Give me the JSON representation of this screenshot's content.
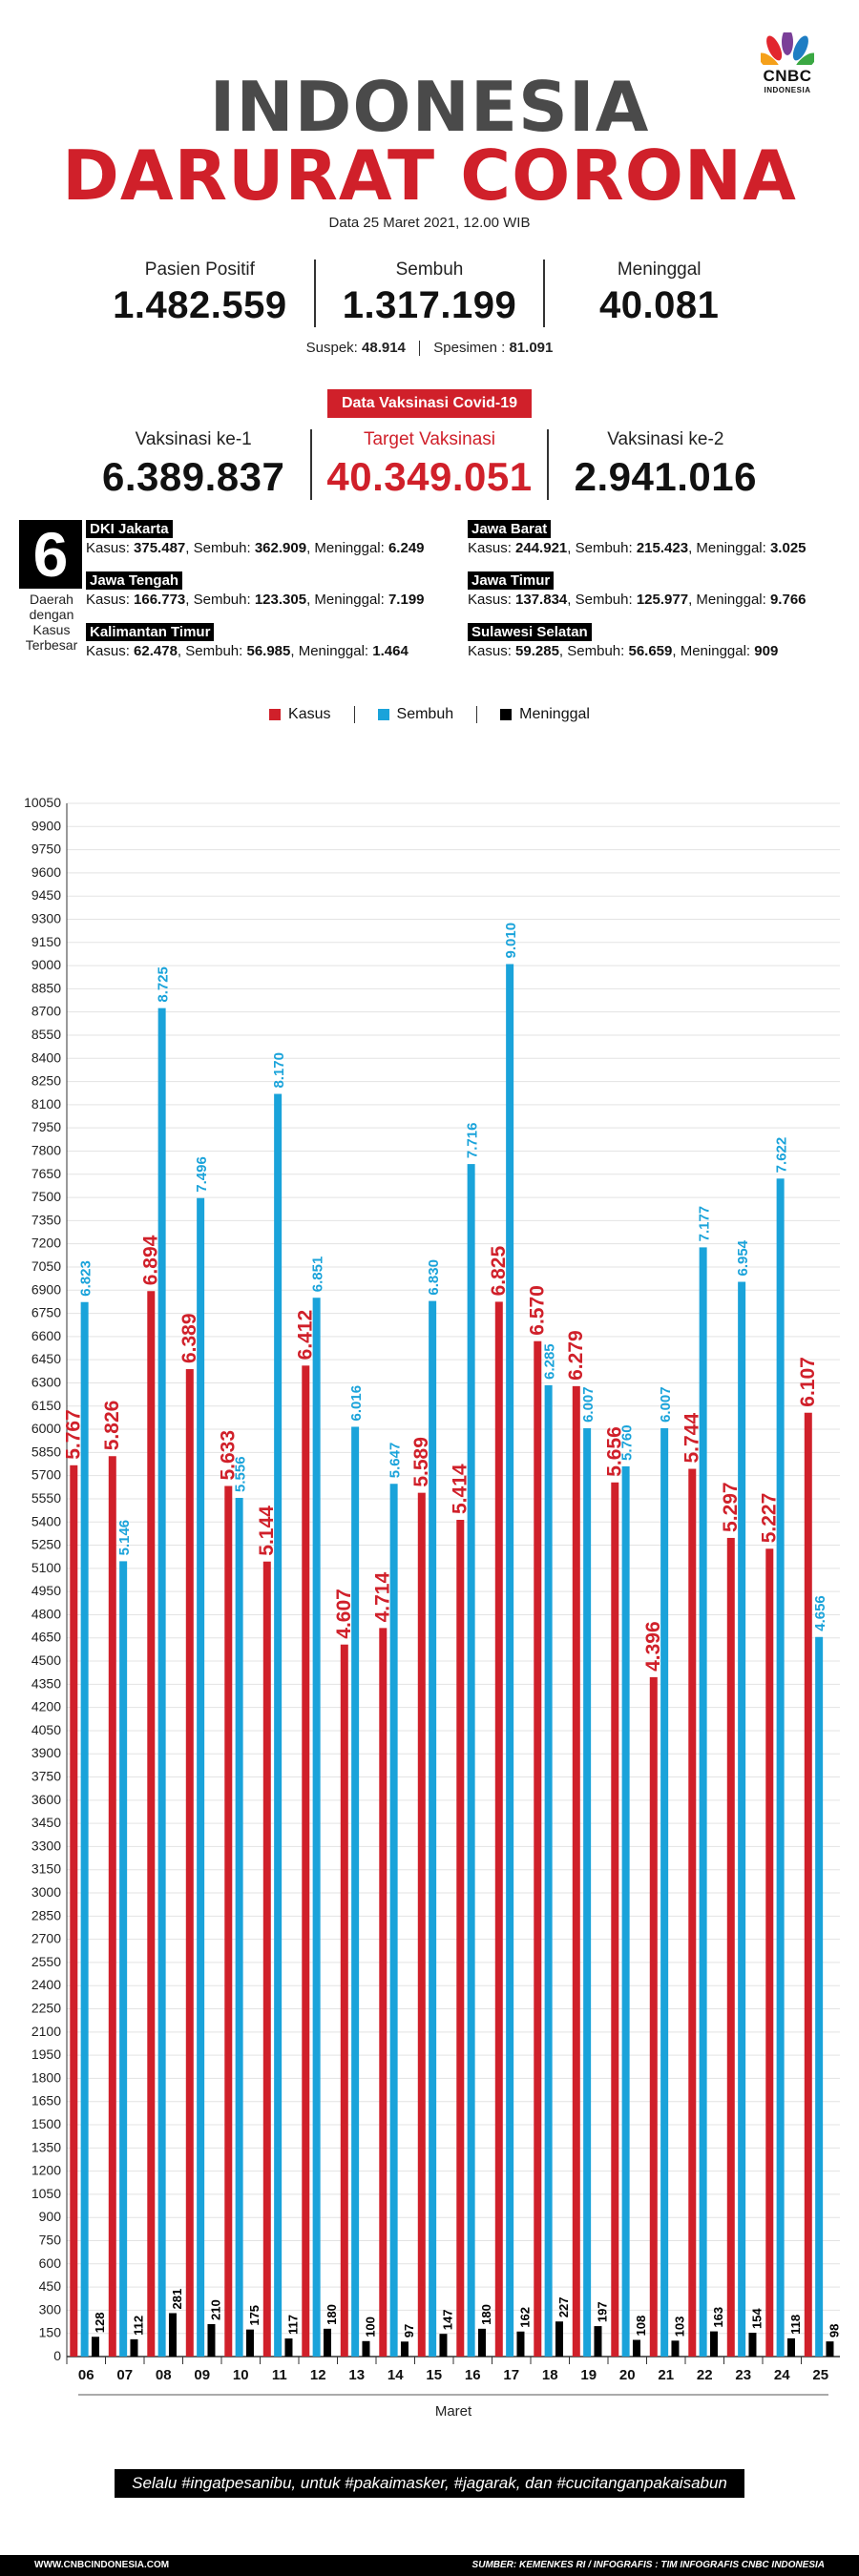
{
  "logo": {
    "line1": "CNBC",
    "line2": "INDONESIA"
  },
  "title_line1": "INDONESIA",
  "title_line2": "DARURAT CORONA",
  "date": "Data 25 Maret 2021, 12.00 WIB",
  "stats": [
    {
      "label": "Pasien Positif",
      "value": "1.482.559"
    },
    {
      "label": "Sembuh",
      "value": "1.317.199"
    },
    {
      "label": "Meninggal",
      "value": "40.081"
    }
  ],
  "suspek": {
    "label": "Suspek:",
    "value": "48.914"
  },
  "spesimen": {
    "label": "Spesimen :",
    "value": "81.091"
  },
  "vaccine": {
    "badge": "Data Vaksinasi Covid-19",
    "items": [
      {
        "label": "Vaksinasi ke-1",
        "value": "6.389.837"
      },
      {
        "label": "Target Vaksinasi",
        "value": "40.349.051"
      },
      {
        "label": "Vaksinasi ke-2",
        "value": "2.941.016"
      }
    ]
  },
  "regions": {
    "big_number": "6",
    "caption": "Daerah dengan Kasus Terbesar",
    "items": [
      {
        "name": "DKI Jakarta",
        "kasus_label": "Kasus:",
        "kasus": "375.487",
        "sembuh_label": "Sembuh:",
        "sembuh": "362.909",
        "meninggal_label": "Meninggal:",
        "meninggal": "6.249"
      },
      {
        "name": "Jawa Barat",
        "kasus_label": "Kasus:",
        "kasus": "244.921",
        "sembuh_label": "Sembuh:",
        "sembuh": "215.423",
        "meninggal_label": "Meninggal:",
        "meninggal": "3.025"
      },
      {
        "name": "Jawa Tengah",
        "kasus_label": "Kasus:",
        "kasus": "166.773",
        "sembuh_label": "Sembuh:",
        "sembuh": "123.305",
        "meninggal_label": "Meninggal:",
        "meninggal": "7.199"
      },
      {
        "name": "Jawa Timur",
        "kasus_label": "Kasus:",
        "kasus": "137.834",
        "sembuh_label": "Sembuh:",
        "sembuh": "125.977",
        "meninggal_label": "Meninggal:",
        "meninggal": "9.766"
      },
      {
        "name": "Kalimantan Timur",
        "kasus_label": "Kasus:",
        "kasus": "62.478",
        "sembuh_label": "Sembuh:",
        "sembuh": "56.985",
        "meninggal_label": "Meninggal:",
        "meninggal": "1.464"
      },
      {
        "name": "Sulawesi Selatan",
        "kasus_label": "Kasus:",
        "kasus": "59.285",
        "sembuh_label": "Sembuh:",
        "sembuh": "56.659",
        "meninggal_label": "Meninggal:",
        "meninggal": "909"
      }
    ]
  },
  "colors": {
    "kasus": "#d0202a",
    "sembuh": "#1aa3da",
    "meninggal": "#000000",
    "title_gray": "#4a4a4a"
  },
  "chart_data": {
    "type": "bar",
    "xlabel": "Maret",
    "categories": [
      "06",
      "07",
      "08",
      "09",
      "10",
      "11",
      "12",
      "13",
      "14",
      "15",
      "16",
      "17",
      "18",
      "19",
      "20",
      "21",
      "22",
      "23",
      "24",
      "25"
    ],
    "series": [
      {
        "name": "Kasus",
        "values": [
          5767,
          5826,
          6894,
          6389,
          5633,
          5144,
          6412,
          4607,
          4714,
          5589,
          5414,
          6825,
          6570,
          6279,
          5656,
          4396,
          5744,
          5297,
          5227,
          6107
        ]
      },
      {
        "name": "Sembuh",
        "values": [
          6823,
          5146,
          8725,
          7496,
          5556,
          8170,
          6851,
          6016,
          5647,
          6830,
          7716,
          9010,
          6285,
          6007,
          5760,
          6007,
          7177,
          6954,
          7622,
          4656
        ]
      },
      {
        "name": "Meninggal",
        "values": [
          128,
          112,
          281,
          210,
          175,
          117,
          180,
          100,
          97,
          147,
          180,
          162,
          227,
          197,
          108,
          103,
          163,
          154,
          118,
          98
        ]
      }
    ],
    "ylim": [
      0,
      10050
    ],
    "yticks": [
      0,
      150,
      300,
      450,
      600,
      750,
      900,
      1050,
      1200,
      1350,
      1500,
      1650,
      1800,
      1950,
      2100,
      2250,
      2400,
      2550,
      2700,
      2850,
      3000,
      3150,
      3300,
      3450,
      3600,
      3750,
      3900,
      4050,
      4200,
      4350,
      4500,
      4650,
      4800,
      4950,
      5100,
      5250,
      5400,
      5550,
      5700,
      5850,
      6000,
      6150,
      6300,
      6450,
      6600,
      6750,
      6900,
      7050,
      7200,
      7350,
      7500,
      7650,
      7800,
      7950,
      8100,
      8250,
      8400,
      8550,
      8700,
      8850,
      9000,
      9150,
      9300,
      9450,
      9600,
      9750,
      9900,
      10050
    ],
    "ytick_labels": [
      "0",
      "150",
      "300",
      "450",
      "600",
      "750",
      "900",
      "1050",
      "1200",
      "1350",
      "1500",
      "1650",
      "1800",
      "1950",
      "2100",
      "2250",
      "2400",
      "2550",
      "2700",
      "2850",
      "3000",
      "3150",
      "3300",
      "3450",
      "3600",
      "3750",
      "3900",
      "4050",
      "4200",
      "4350",
      "4500",
      "4650",
      "4800",
      "4950",
      "5100",
      "5250",
      "5400",
      "5550",
      "5700",
      "5850",
      "6000",
      "6150",
      "6300",
      "6450",
      "6600",
      "6750",
      "6900",
      "7050",
      "7200",
      "7350",
      "7500",
      "7650",
      "7800",
      "7950",
      "8100",
      "8250",
      "8400",
      "8550",
      "8700",
      "8850",
      "9000",
      "9150",
      "9300",
      "9450",
      "9600",
      "9750",
      "9900",
      "10050"
    ],
    "labels": {
      "Kasus": [
        "5.767",
        "5.826",
        "6.894",
        "6.389",
        "5.633",
        "5.144",
        "6.412",
        "4.607",
        "4.714",
        "5.589",
        "5.414",
        "6.825",
        "6.570",
        "6.279",
        "5.656",
        "4.396",
        "5.744",
        "5.297",
        "5.227",
        "6.107"
      ],
      "Sembuh": [
        "6.823",
        "5.146",
        "8.725",
        "7.496",
        "5.556",
        "8.170",
        "6.851",
        "6.016",
        "5.647",
        "6.830",
        "7.716",
        "9.010",
        "6.285",
        "6.007",
        "5.760",
        "6.007",
        "7.177",
        "6.954",
        "7.622",
        "4.656"
      ],
      "Meninggal": [
        "128",
        "112",
        "281",
        "210",
        "175",
        "117",
        "180",
        "100",
        "97",
        "147",
        "180",
        "162",
        "227",
        "197",
        "108",
        "103",
        "163",
        "154",
        "118",
        "98"
      ]
    },
    "legend_position": "top"
  },
  "slogan": "Selalu #ingatpesanibu, untuk #pakaimasker, #jagarak, dan #cucitanganpakaisabun",
  "footer": {
    "left": "WWW.CNBCINDONESIA.COM",
    "right": "SUMBER: KEMENKES RI / INFOGRAFIS : TIM INFOGRAFIS CNBC INDONESIA"
  }
}
